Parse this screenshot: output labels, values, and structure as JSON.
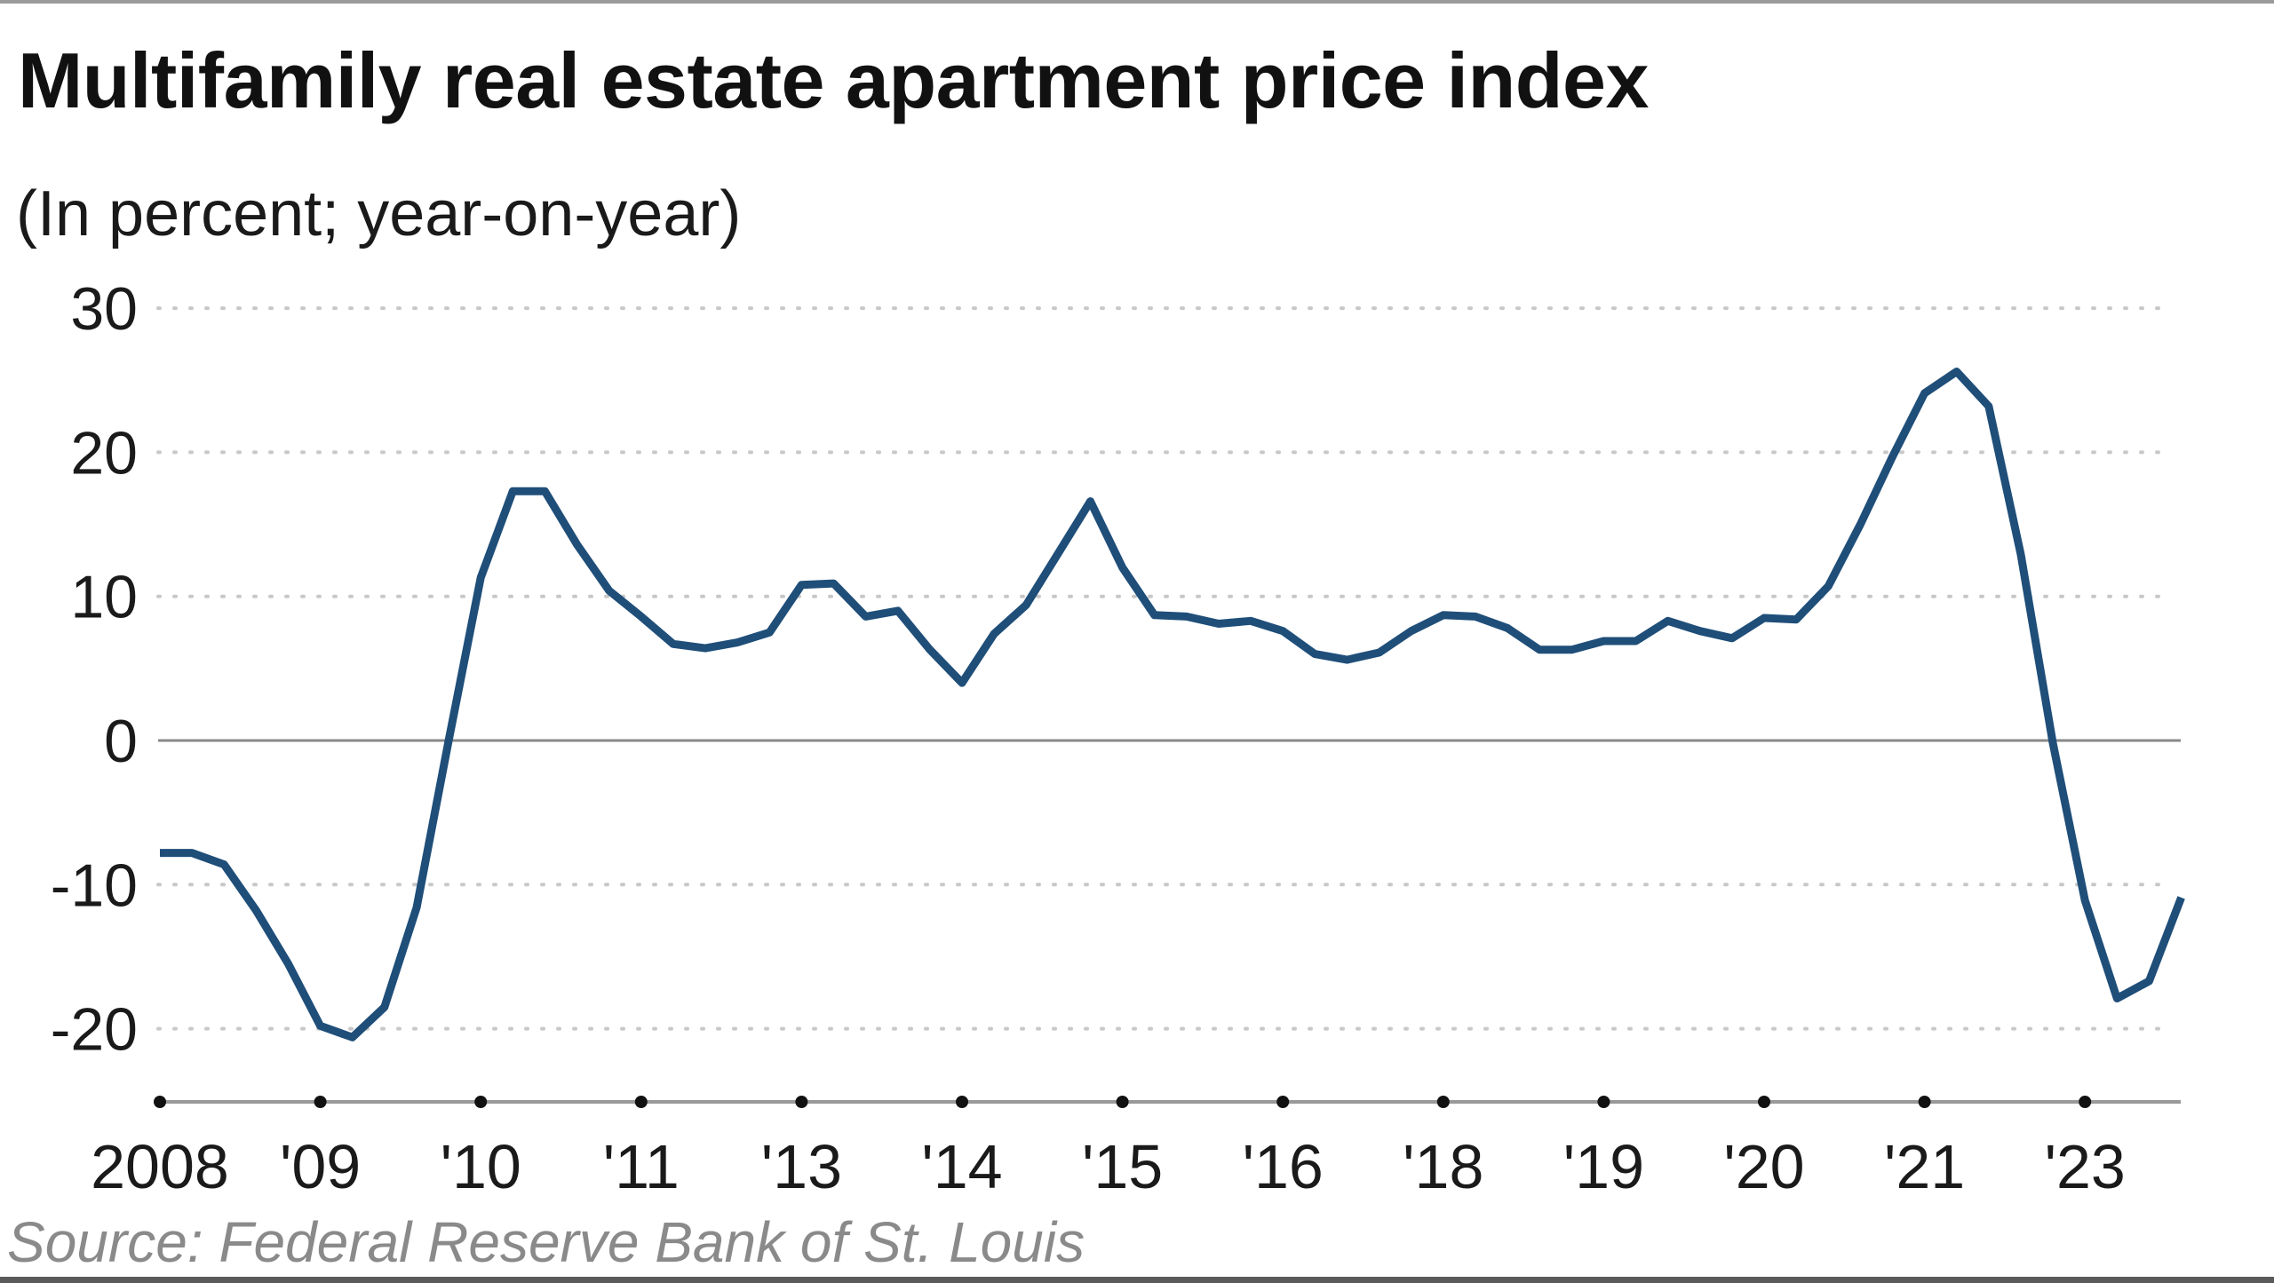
{
  "header": {
    "title": "Multifamily real estate apartment price index",
    "subtitle": "(In percent; year-on-year)"
  },
  "footer": {
    "source": "Source: Federal Reserve Bank of St. Louis"
  },
  "colors": {
    "line": "#1f4e79",
    "grid": "#c8c8c8",
    "zero_line": "#888888",
    "axis": "#999999",
    "text": "#1a1a1a",
    "source_text": "#8a8a8a"
  },
  "chart_data": {
    "type": "line",
    "title": "Multifamily real estate apartment price index",
    "subtitle": "(In percent; year-on-year)",
    "xlabel": "",
    "ylabel": "Percent, year-on-year",
    "frequency": "quarterly",
    "x_start": "2008 Q1",
    "x_end": "2023 Q4",
    "ylim": [
      -25,
      30
    ],
    "yticks": [
      30,
      20,
      10,
      0,
      -10,
      -20
    ],
    "ytick_labels": [
      "30",
      "20",
      "10",
      "0",
      "-10",
      "-20"
    ],
    "xtick_positions": [
      0,
      5,
      10,
      15,
      20,
      25,
      30,
      35,
      40,
      45,
      50,
      55,
      60
    ],
    "xtick_labels": [
      "2008",
      "'09",
      "'10",
      "'11",
      "'13",
      "'14",
      "'15",
      "'16",
      "'18",
      "'19",
      "'20",
      "'21",
      "'23"
    ],
    "grid": "horizontal dotted",
    "legend": "none",
    "source": "Source: Federal Reserve Bank of St. Louis",
    "series": [
      {
        "name": "Multifamily apartment price index (YoY %)",
        "values": [
          -7.8,
          -7.8,
          -8.6,
          -11.8,
          -15.5,
          -19.8,
          -20.6,
          -18.5,
          -11.6,
          0.0,
          11.3,
          17.3,
          17.3,
          13.6,
          10.4,
          8.6,
          6.7,
          6.4,
          6.8,
          7.5,
          10.8,
          10.9,
          8.6,
          9.0,
          6.3,
          4.0,
          7.4,
          9.4,
          13.0,
          16.6,
          12.0,
          8.7,
          8.6,
          8.1,
          8.3,
          7.6,
          6.0,
          5.6,
          6.1,
          7.6,
          8.7,
          8.6,
          7.8,
          6.3,
          6.3,
          6.9,
          6.9,
          8.3,
          7.6,
          7.1,
          8.5,
          8.4,
          10.7,
          15.0,
          19.7,
          24.1,
          25.6,
          23.2,
          12.9,
          -0.2,
          -11.1,
          -17.9,
          -16.7,
          -10.9
        ]
      }
    ]
  }
}
